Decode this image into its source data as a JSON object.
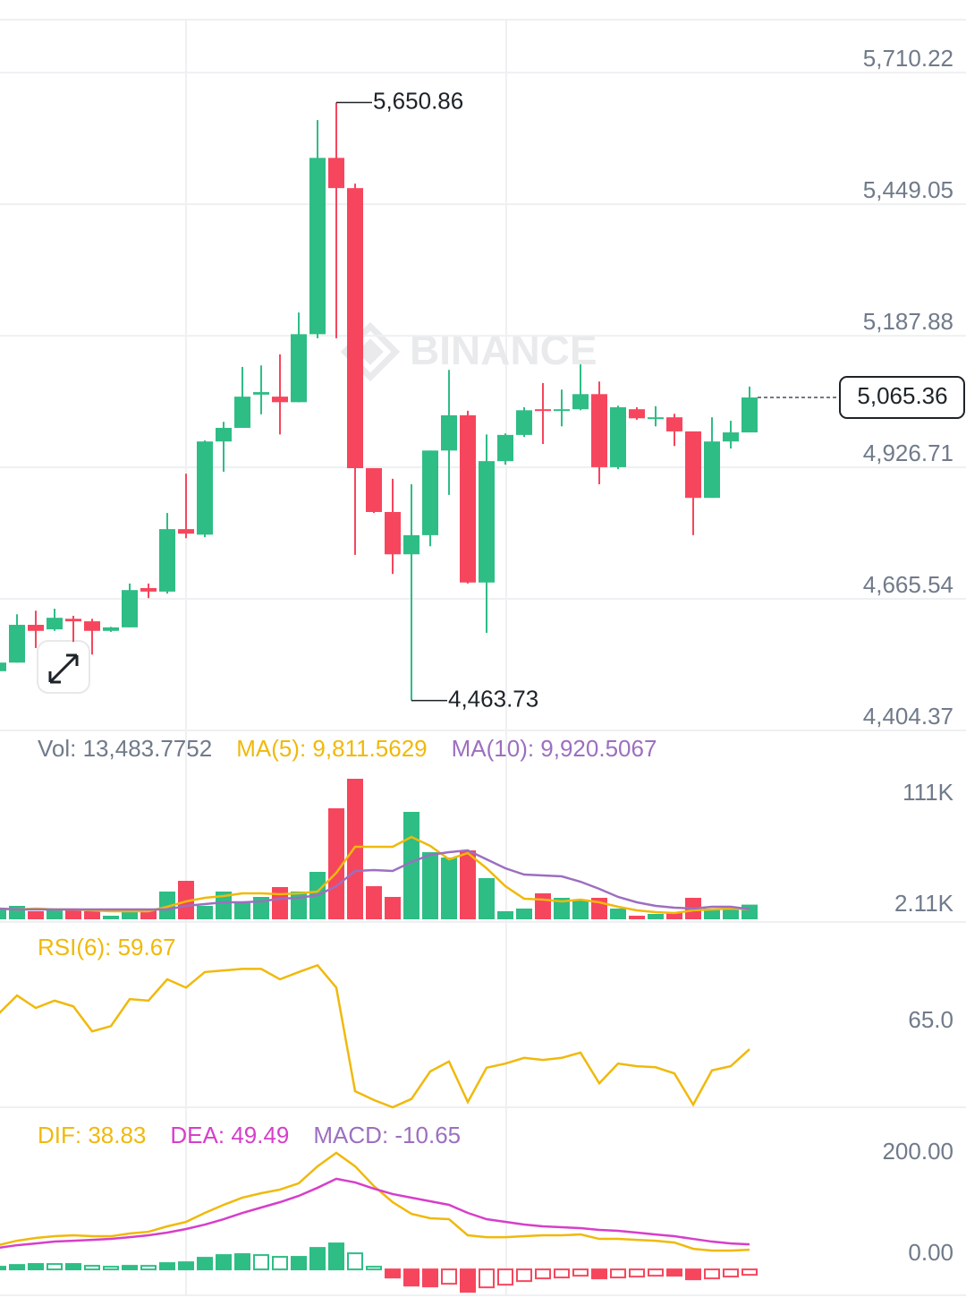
{
  "chart_data": [
    {
      "type": "candlestick",
      "up_color": "#2ebd85",
      "down_color": "#f6465d",
      "grid": true,
      "ylim": [
        4404.37,
        5810
      ],
      "yticks": [
        {
          "value": 4404.37,
          "label": "4,404.37"
        },
        {
          "value": 4665.54,
          "label": "4,665.54"
        },
        {
          "value": 4926.71,
          "label": "4,926.71"
        },
        {
          "value": 5187.88,
          "label": "5,187.88"
        },
        {
          "value": 5449.05,
          "label": "5,449.05"
        },
        {
          "value": 5710.22,
          "label": "5,710.22"
        }
      ],
      "watermark": "BINANCE",
      "max_label": "5,650.86",
      "min_label": "4,463.73",
      "last_label": "5,065.36",
      "open": [
        4522,
        4539,
        4614,
        4605,
        4626,
        4621,
        4602,
        4609,
        4687,
        4680,
        4804,
        4793,
        4978,
        5005,
        5071,
        5067,
        5056,
        5191,
        5541,
        5481,
        4925,
        4838,
        4754,
        4792,
        4960,
        5030,
        4698,
        4939,
        4991,
        5042,
        5040,
        5042,
        5072,
        4927,
        5042,
        5023,
        5026,
        4998,
        4866,
        4978,
        4996
      ],
      "high": [
        4545,
        4635,
        4642,
        4646,
        4632,
        4626,
        4610,
        4696,
        4696,
        4836,
        4914,
        4980,
        5017,
        5126,
        5129,
        5151,
        5234,
        5616,
        5650.86,
        5490,
        4925,
        4904,
        4893,
        4960,
        5120,
        5039,
        4992,
        4994,
        5046,
        5094,
        5081,
        5131,
        5097,
        5049,
        5046,
        5048,
        5033,
        4998,
        5026,
        5019,
        5087
      ],
      "low": [
        4518,
        4539,
        4568,
        4602,
        4580,
        4555,
        4600,
        4609,
        4667,
        4676,
        4786,
        4788,
        4918,
        5005,
        5032,
        4992,
        5056,
        5183,
        5183,
        4753,
        4836,
        4715,
        4463.73,
        4770,
        4872,
        4696,
        4598,
        4932,
        4987,
        4973,
        5008,
        5040,
        4893,
        4923,
        5021,
        5008,
        4969,
        4792,
        4866,
        4964,
        4996
      ],
      "close": [
        4539,
        4614,
        4602,
        4628,
        4621,
        4602,
        4609,
        4683,
        4680,
        4804,
        4795,
        4978,
        5005,
        5067,
        5076,
        5056,
        5191,
        5541,
        5481,
        4925,
        4838,
        4754,
        4792,
        4960,
        5030,
        4698,
        4939,
        4991,
        5040,
        5040,
        5042,
        5072,
        4927,
        5046,
        5024,
        5026,
        4998,
        4866,
        4978,
        4996,
        5065.36
      ]
    },
    {
      "type": "volume",
      "grid": false,
      "ylim": [
        2110,
        119330
      ],
      "yticks": [
        {
          "value": 111000,
          "label": "111K"
        },
        {
          "value": 2110,
          "label": "2.11K"
        }
      ],
      "series": [
        {
          "name": "Vol: 13,483.7752",
          "kind": "bar",
          "color": "#707a8a",
          "values": [
            10433,
            12514,
            8352,
            9046,
            9046,
            8352,
            4884,
            7659,
            9740,
            23612,
            31935,
            12514,
            23612,
            15288,
            19450,
            27080,
            23612,
            38871,
            88116,
            111000,
            27773,
            19450,
            85342,
            54130,
            49968,
            55517,
            34016,
            8352,
            10433,
            22224,
            18756,
            17369,
            18756,
            10433,
            4884,
            6272,
            6965,
            18756,
            10433,
            9740,
            13483.7752
          ]
        },
        {
          "name": "MA(5): 9,811.5629",
          "kind": "line",
          "color": "#f0b90b",
          "values": [
            10433,
            9740,
            10433,
            9740,
            9740,
            9046,
            8352,
            8352,
            8352,
            11820,
            15982,
            18756,
            20144,
            22224,
            22224,
            21531,
            22224,
            23612,
            38177,
            58292,
            58292,
            58292,
            65921,
            58985,
            48581,
            53436,
            41645,
            27773,
            18063,
            17369,
            15982,
            17369,
            15288,
            11820,
            9046,
            7659,
            6965,
            9046,
            9740,
            10433,
            9811.5629
          ]
        },
        {
          "name": "MA(10): 9,920.5067",
          "kind": "line",
          "color": "#9c6fc0",
          "values": [
            10433,
            9740,
            9740,
            9740,
            9740,
            9740,
            9740,
            9740,
            9740,
            9740,
            12514,
            13901,
            15288,
            15288,
            15982,
            18063,
            18756,
            20838,
            27773,
            39564,
            40258,
            39564,
            46500,
            52049,
            54130,
            55517,
            48581,
            41645,
            36790,
            36096,
            35403,
            31241,
            25692,
            19450,
            15288,
            12514,
            11127,
            10433,
            11820,
            11820,
            9920.5067
          ]
        }
      ]
    },
    {
      "type": "line",
      "grid": false,
      "ylim": [
        48.5,
        82.4
      ],
      "yticks": [
        {
          "value": 65,
          "label": "65.0"
        }
      ],
      "series": [
        {
          "name": "RSI(6): 59.67",
          "kind": "line",
          "color": "#f0b90b",
          "values": [
            66.4,
            70.0,
            67.6,
            69.0,
            67.9,
            63.1,
            64.1,
            69.3,
            69.0,
            73.1,
            71.5,
            74.5,
            74.8,
            75.1,
            75.1,
            73.1,
            74.5,
            75.8,
            71.5,
            51.6,
            49.9,
            48.5,
            50.1,
            55.4,
            57.3,
            49.5,
            56.1,
            56.9,
            58.0,
            57.6,
            58.0,
            59.0,
            53.1,
            56.9,
            56.4,
            56.2,
            55.0,
            49.0,
            55.6,
            56.4,
            59.67
          ]
        }
      ]
    },
    {
      "type": "macd",
      "grid": false,
      "ylim": [
        -51,
        297
      ],
      "yticks": [
        {
          "value": 200,
          "label": "200.00"
        },
        {
          "value": 0,
          "label": "0.00"
        }
      ],
      "series": [
        {
          "name": "DIF: 38.83",
          "kind": "line",
          "color": "#f0b90b",
          "values": [
            47.8,
            56.6,
            62.0,
            65.5,
            67.3,
            65.5,
            65.5,
            70.8,
            74.3,
            85.0,
            93.8,
            111.5,
            127.4,
            141.6,
            150.4,
            157.5,
            169.9,
            203.5,
            230.1,
            203.5,
            164.6,
            132.7,
            109.7,
            100.9,
            99.1,
            67.3,
            63.7,
            63.7,
            65.5,
            67.3,
            67.3,
            69.0,
            60.2,
            60.2,
            58.4,
            56.6,
            53.1,
            40.7,
            37.2,
            37.2,
            38.83
          ]
        },
        {
          "name": "DEA: 49.49",
          "kind": "line",
          "color": "#d63fc9",
          "values": [
            42.5,
            47.8,
            51.3,
            54.9,
            56.6,
            58.4,
            60.2,
            63.7,
            67.3,
            72.6,
            79.7,
            88.5,
            99.1,
            111.5,
            122.1,
            132.7,
            145.1,
            161.1,
            178.8,
            171.7,
            159.3,
            148.7,
            141.6,
            134.5,
            127.4,
            111.5,
            99.1,
            93.8,
            88.5,
            85.0,
            83.2,
            81.4,
            77.9,
            76.1,
            72.6,
            69.0,
            65.5,
            60.2,
            54.9,
            51.3,
            49.49
          ]
        },
        {
          "name": "MACD: -10.65",
          "kind": "bar",
          "color": "#9c6fc0",
          "up_color": "#2ebd85",
          "down_color": "#f6465d",
          "values": [
            5.3,
            8.8,
            10.7,
            10.6,
            10.7,
            7.1,
            5.3,
            7.1,
            7.0,
            12.4,
            14.1,
            23.0,
            28.3,
            30.1,
            28.3,
            24.8,
            24.8,
            42.4,
            51.3,
            31.8,
            5.3,
            -16.0,
            -31.9,
            -33.6,
            -28.3,
            -44.2,
            -35.4,
            -30.1,
            -23.0,
            -17.7,
            -15.9,
            -12.4,
            -17.7,
            -15.9,
            -14.2,
            -12.4,
            -12.4,
            -19.5,
            -17.7,
            -14.1,
            -10.65
          ]
        }
      ]
    }
  ]
}
